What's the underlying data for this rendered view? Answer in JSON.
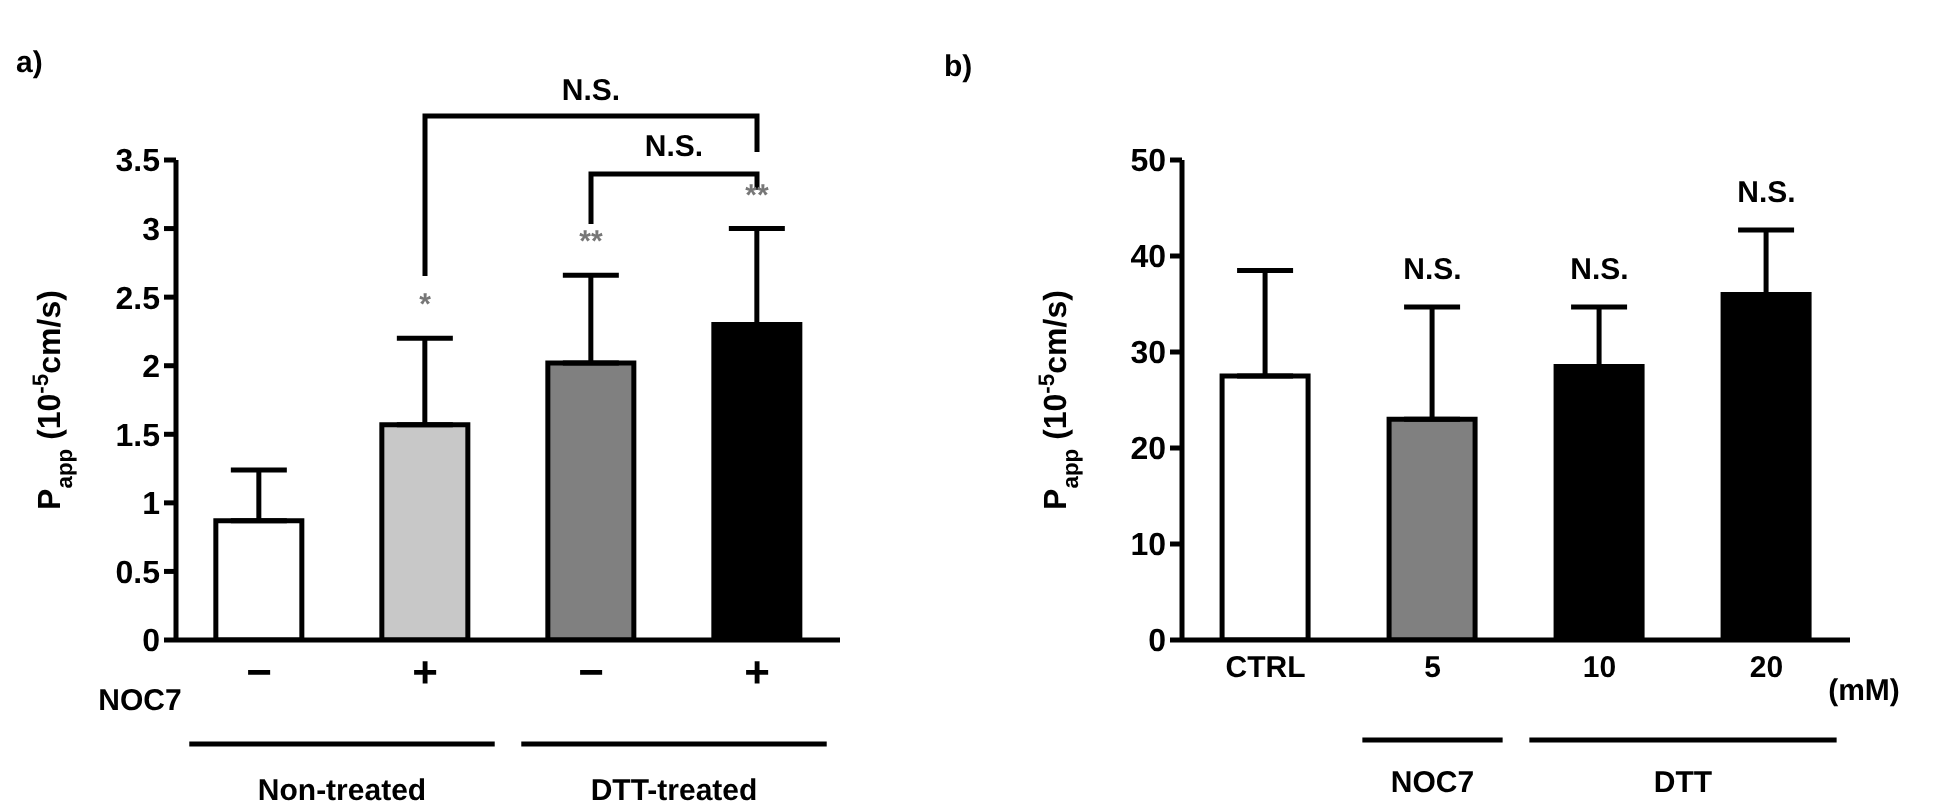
{
  "chart_data": [
    {
      "type": "bar",
      "categories": [
        "−",
        "+",
        "−",
        "+"
      ],
      "values": [
        0.87,
        1.57,
        2.02,
        2.3
      ],
      "colors": [
        "#ffffff",
        "#c8c8c8",
        "#808080",
        "#000000"
      ],
      "errors": [
        [
          0.87,
          1.24
        ],
        [
          1.57,
          2.2
        ],
        [
          2.02,
          2.66
        ],
        [
          2.3,
          3.0
        ]
      ],
      "ylabel": "P$_{app}$ (10$^{-5}$cm/s)",
      "ylim": [
        0,
        3.5
      ],
      "yticks": [
        0,
        0.5,
        1,
        1.5,
        2,
        2.5,
        3,
        3.5
      ],
      "annotations": [
        "a)",
        "N.S.",
        "N.S.",
        "*",
        "**",
        "**",
        "NOC7",
        "Non-treated",
        "DTT-treated"
      ]
    },
    {
      "type": "bar",
      "categories": [
        "CTRL",
        "5",
        "10",
        "20"
      ],
      "values": [
        27.5,
        23,
        28.5,
        36
      ],
      "colors": [
        "#ffffff",
        "#808080",
        "#000000",
        "#000000"
      ],
      "errors": [
        [
          27.5,
          38.5
        ],
        [
          23,
          34.7
        ],
        [
          28.5,
          34.7
        ],
        [
          36,
          42.7
        ]
      ],
      "ylabel": "P$_{app}$ (10$^{-5}$cm/s)",
      "ylim": [
        0,
        50
      ],
      "yticks": [
        0,
        10,
        20,
        30,
        40,
        50
      ],
      "annotations": [
        "b)",
        "N.S.",
        "N.S.",
        "N.S.",
        "(mM)",
        "NOC7",
        "DTT"
      ]
    }
  ]
}
